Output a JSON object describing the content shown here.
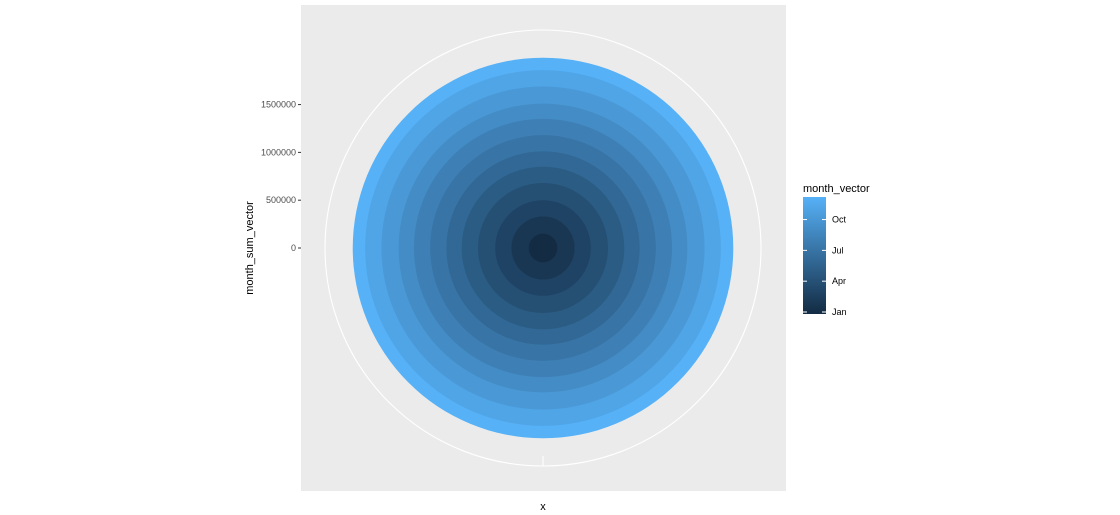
{
  "chart_data": {
    "type": "pie",
    "coord": "polar",
    "xlabel": "x",
    "ylabel": "month_sum_vector",
    "y_ticks": [
      0,
      500000,
      1000000,
      1500000
    ],
    "y_tick_labels": [
      "0",
      "500000",
      "1000000",
      "1500000"
    ],
    "rings": [
      {
        "month": 1,
        "cumulative": 150000
      },
      {
        "month": 2,
        "cumulative": 330000
      },
      {
        "month": 3,
        "cumulative": 500000
      },
      {
        "month": 4,
        "cumulative": 680000
      },
      {
        "month": 5,
        "cumulative": 850000
      },
      {
        "month": 6,
        "cumulative": 1010000
      },
      {
        "month": 7,
        "cumulative": 1180000
      },
      {
        "month": 8,
        "cumulative": 1350000
      },
      {
        "month": 9,
        "cumulative": 1510000
      },
      {
        "month": 10,
        "cumulative": 1690000
      },
      {
        "month": 11,
        "cumulative": 1860000
      },
      {
        "month": 12,
        "cumulative": 1990000
      }
    ],
    "legend": {
      "title": "month_vector",
      "breaks": [
        {
          "label": "Jan",
          "value": 1
        },
        {
          "label": "Apr",
          "value": 4
        },
        {
          "label": "Jul",
          "value": 7
        },
        {
          "label": "Oct",
          "value": 10
        }
      ],
      "range": [
        1,
        12
      ],
      "placement": "right"
    },
    "colors": {
      "low": "#132b43",
      "high": "#56b1f7",
      "panel": "#ebebeb",
      "grid": "#ffffff"
    }
  }
}
